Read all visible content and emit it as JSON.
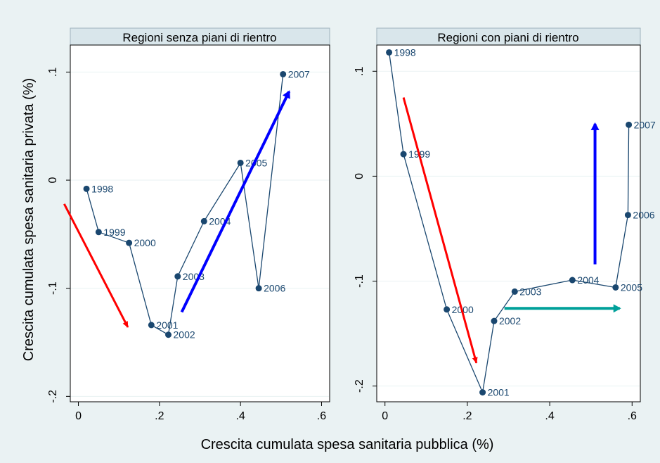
{
  "figure": {
    "ylabel": "Crescita cumulata spesa sanitaria privata (%)",
    "xlabel": "Crescita cumulata spesa sanitaria pubblica (%)"
  },
  "colors": {
    "background": "#eaf2f3",
    "plot_bg": "#ffffff",
    "panel_header": "#d9e6eb",
    "series": "#1a476f",
    "arrow_red": "#ff0000",
    "arrow_blue": "#0000ff",
    "arrow_teal": "#00a09a",
    "grid": "#eaf2f3"
  },
  "chart_data": [
    {
      "type": "line",
      "title": "Regioni senza piani di rientro",
      "xlim": [
        -0.02,
        0.62
      ],
      "ylim": [
        -0.205,
        0.125
      ],
      "xticks": [
        0,
        0.2,
        0.4,
        0.6
      ],
      "xtick_labels": [
        "0",
        ".2",
        ".4",
        ".6"
      ],
      "yticks": [
        -0.2,
        -0.1,
        0,
        0.1
      ],
      "ytick_labels": [
        "-.2",
        "-.1",
        "0",
        ".1"
      ],
      "grid": true,
      "points": [
        {
          "label": "1998",
          "x": 0.02,
          "y": -0.008
        },
        {
          "label": "1999",
          "x": 0.05,
          "y": -0.048
        },
        {
          "label": "2000",
          "x": 0.125,
          "y": -0.058
        },
        {
          "label": "2001",
          "x": 0.18,
          "y": -0.134
        },
        {
          "label": "2002",
          "x": 0.222,
          "y": -0.143
        },
        {
          "label": "2003",
          "x": 0.245,
          "y": -0.089
        },
        {
          "label": "2004",
          "x": 0.31,
          "y": -0.038
        },
        {
          "label": "2005",
          "x": 0.4,
          "y": 0.016
        },
        {
          "label": "2006",
          "x": 0.445,
          "y": -0.1
        },
        {
          "label": "2007",
          "x": 0.505,
          "y": 0.098
        }
      ],
      "arrows": [
        {
          "color": "red",
          "from": [
            -0.035,
            -0.022
          ],
          "to": [
            0.122,
            -0.136
          ]
        },
        {
          "color": "blue",
          "from": [
            0.255,
            -0.122
          ],
          "to": [
            0.52,
            0.082
          ]
        }
      ]
    },
    {
      "type": "line",
      "title": "Regioni con piani di rientro",
      "xlim": [
        -0.02,
        0.62
      ],
      "ylim": [
        -0.215,
        0.125
      ],
      "xticks": [
        0,
        0.2,
        0.4,
        0.6
      ],
      "xtick_labels": [
        "0",
        ".2",
        ".4",
        ".6"
      ],
      "yticks": [
        -0.2,
        -0.1,
        0,
        0.1
      ],
      "ytick_labels": [
        "-.2",
        "-.1",
        "0",
        ".1"
      ],
      "grid": true,
      "points": [
        {
          "label": "1998",
          "x": 0.01,
          "y": 0.118
        },
        {
          "label": "1999",
          "x": 0.045,
          "y": 0.021
        },
        {
          "label": "2000",
          "x": 0.15,
          "y": -0.127
        },
        {
          "label": "2001",
          "x": 0.237,
          "y": -0.206
        },
        {
          "label": "2002",
          "x": 0.265,
          "y": -0.138
        },
        {
          "label": "2003",
          "x": 0.315,
          "y": -0.11
        },
        {
          "label": "2004",
          "x": 0.455,
          "y": -0.099
        },
        {
          "label": "2005",
          "x": 0.56,
          "y": -0.106
        },
        {
          "label": "2006",
          "x": 0.59,
          "y": -0.037
        },
        {
          "label": "2007",
          "x": 0.592,
          "y": 0.049
        }
      ],
      "arrows": [
        {
          "color": "red",
          "from": [
            0.045,
            0.075
          ],
          "to": [
            0.222,
            -0.178
          ]
        },
        {
          "color": "blue",
          "from": [
            0.51,
            -0.084
          ],
          "to": [
            0.51,
            0.05
          ]
        },
        {
          "color": "teal",
          "from": [
            0.29,
            -0.126
          ],
          "to": [
            0.57,
            -0.126
          ]
        }
      ]
    }
  ]
}
